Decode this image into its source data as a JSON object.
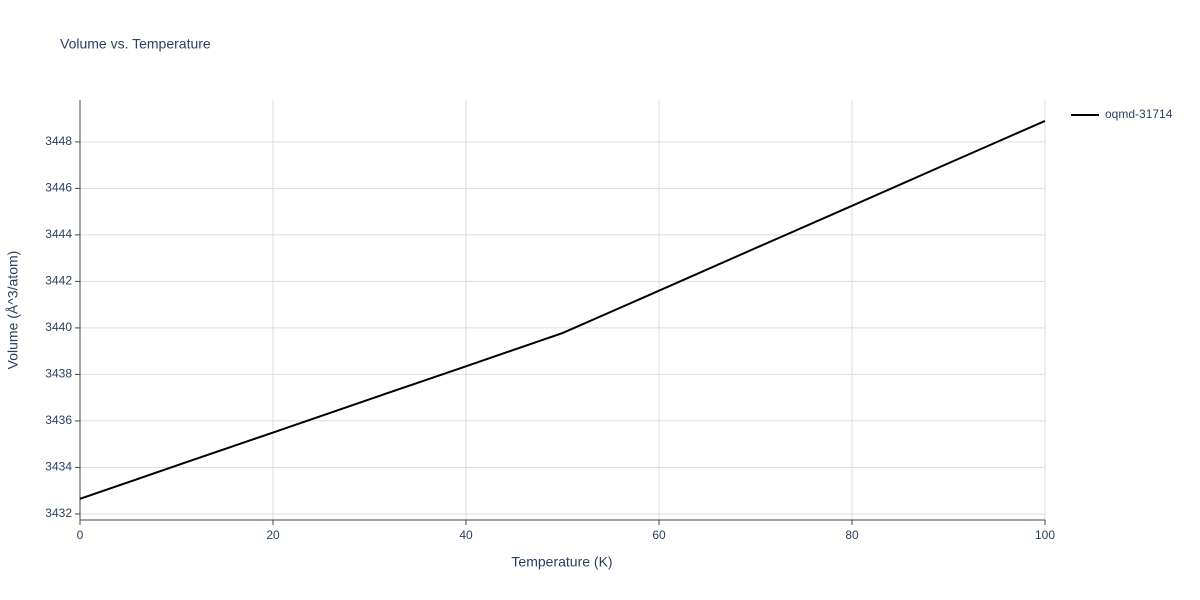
{
  "chart_data": {
    "type": "line",
    "title": "Volume vs. Temperature",
    "x_label": "Temperature (K)",
    "y_label": "Volume (Å^3/atom)",
    "x": [
      0,
      10,
      20,
      30,
      40,
      50,
      60,
      70,
      80,
      90,
      100
    ],
    "series": [
      {
        "name": "oqmd-31714",
        "color": "#000000",
        "values": [
          3432.65,
          3434.08,
          3435.5,
          3436.93,
          3438.35,
          3439.78,
          3441.6,
          3443.43,
          3445.25,
          3447.08,
          3448.9
        ]
      }
    ],
    "xlim": [
      0,
      100
    ],
    "xticks": [
      0,
      20,
      40,
      60,
      80,
      100
    ],
    "ylim": [
      3431.74,
      3449.8
    ],
    "yticks": [
      3432,
      3434,
      3436,
      3438,
      3440,
      3442,
      3444,
      3446,
      3448
    ],
    "grid": true,
    "legend": "right"
  }
}
